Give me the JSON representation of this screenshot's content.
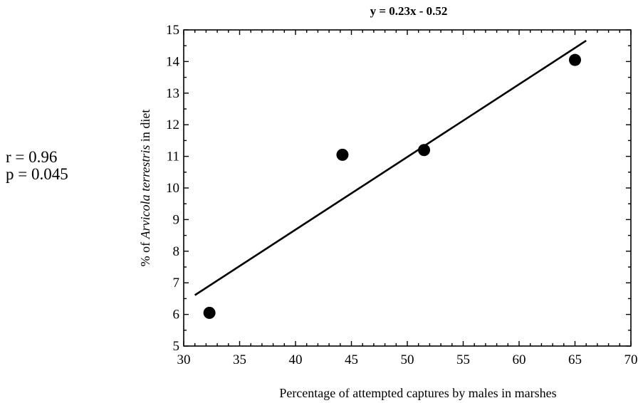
{
  "chart_data": {
    "type": "scatter",
    "title": "y = 0.23x - 0.52",
    "xlabel": "Percentage of attempted captures by males in marshes",
    "ylabel_parts": [
      "% of ",
      "Arvicola terrestris",
      " in diet"
    ],
    "xlim": [
      30,
      70
    ],
    "ylim": [
      5,
      15
    ],
    "xticks": [
      30,
      35,
      40,
      45,
      50,
      55,
      60,
      65,
      70
    ],
    "yticks": [
      5,
      6,
      7,
      8,
      9,
      10,
      11,
      12,
      13,
      14,
      15
    ],
    "points": [
      {
        "x": 32.3,
        "y": 6.05
      },
      {
        "x": 44.2,
        "y": 11.05
      },
      {
        "x": 51.5,
        "y": 11.2
      },
      {
        "x": 65.0,
        "y": 14.05
      }
    ],
    "regression": {
      "slope": 0.23,
      "intercept": -0.52,
      "x_range": [
        31,
        66
      ]
    },
    "grid": false,
    "marker_color": "#000000",
    "line_color": "#000000"
  },
  "stats": {
    "r_text": "r = 0.96",
    "p_text": "p = 0.045"
  }
}
